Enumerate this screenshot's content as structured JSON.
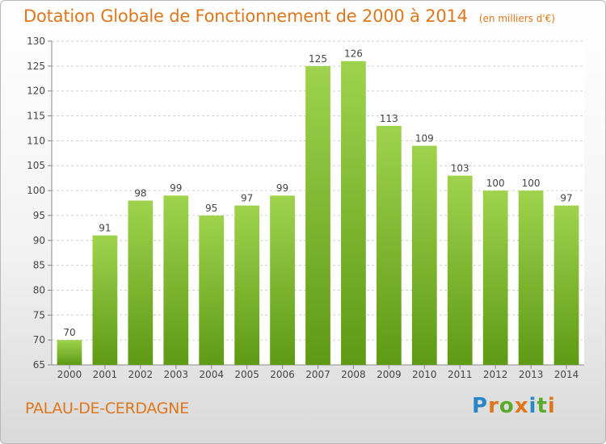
{
  "header": {
    "title": "Dotation Globale de Fonctionnement de 2000 à 2014",
    "unit": "(en milliers d'€)"
  },
  "footer": {
    "commune": "PALAU-DE-CERDAGNE",
    "logo": "Proxiti"
  },
  "colors": {
    "bar_top": "#9fd34e",
    "bar_bottom": "#5f9a14",
    "accent": "#e0761b"
  },
  "chart_data": {
    "type": "bar",
    "categories": [
      "2000",
      "2001",
      "2002",
      "2003",
      "2004",
      "2005",
      "2006",
      "2007",
      "2008",
      "2009",
      "2010",
      "2011",
      "2012",
      "2013",
      "2014"
    ],
    "values": [
      70,
      91,
      98,
      99,
      95,
      97,
      99,
      125,
      126,
      113,
      109,
      103,
      100,
      100,
      97
    ],
    "ylim": [
      65,
      130
    ],
    "yticks": [
      65,
      70,
      75,
      80,
      85,
      90,
      95,
      100,
      105,
      110,
      115,
      120,
      125,
      130
    ],
    "grid": true,
    "data_labels": true
  }
}
